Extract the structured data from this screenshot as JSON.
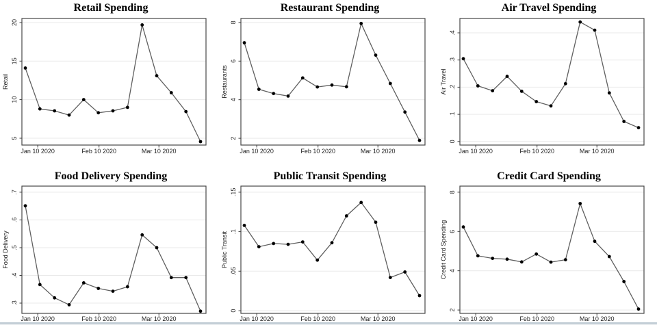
{
  "page": {
    "background": "#ffffff",
    "bottom_strip_color": "#c4cfd7"
  },
  "style": {
    "line_color": "#5f5f5f",
    "marker_color": "#000000",
    "grid_color": "#e9e9e9",
    "frame_color": "#454545",
    "tick_color": "#3f3f3f",
    "tick_label_color": "#1f1f1f",
    "title_color": "#000000"
  },
  "x_axis": {
    "tick_labels": [
      "Jan 10 2020",
      "Feb 10 2020",
      "Mar 10 2020"
    ],
    "tick_positions": [
      0.85,
      5.05,
      9.15
    ],
    "n_points": 13
  },
  "chart_data": [
    {
      "type": "line",
      "title": "Retail Spending",
      "ylabel": "Retail",
      "x_tick_labels": [
        "Jan 10 2020",
        "Feb 10 2020",
        "Mar 10 2020"
      ],
      "yticks": [
        {
          "value": 5,
          "label": "5"
        },
        {
          "value": 10,
          "label": "10"
        },
        {
          "value": 15,
          "label": "15"
        },
        {
          "value": 20,
          "label": "20"
        }
      ],
      "ylim": [
        4.11,
        20.53
      ],
      "values": [
        14.1,
        8.8,
        8.55,
        8.0,
        10.0,
        8.3,
        8.55,
        9.0,
        19.7,
        13.1,
        10.9,
        8.45,
        4.55
      ]
    },
    {
      "type": "line",
      "title": "Restaurant Spending",
      "ylabel": "Restaurants",
      "x_tick_labels": [
        "Jan 10 2020",
        "Feb 10 2020",
        "Mar 10 2020"
      ],
      "yticks": [
        {
          "value": 2,
          "label": "2"
        },
        {
          "value": 4,
          "label": "4"
        },
        {
          "value": 6,
          "label": "6"
        },
        {
          "value": 8,
          "label": "8"
        }
      ],
      "ylim": [
        1.65,
        8.21
      ],
      "values": [
        6.95,
        4.54,
        4.32,
        4.19,
        5.13,
        4.66,
        4.76,
        4.67,
        7.95,
        6.31,
        4.84,
        3.36,
        1.89
      ]
    },
    {
      "type": "line",
      "title": "Air Travel Spending",
      "ylabel": "Air Travel",
      "x_tick_labels": [
        "Jan 10 2020",
        "Feb 10 2020",
        "Mar 10 2020"
      ],
      "yticks": [
        {
          "value": 0.0,
          "label": "0"
        },
        {
          "value": 0.1,
          "label": ".1"
        },
        {
          "value": 0.2,
          "label": ".2"
        },
        {
          "value": 0.3,
          "label": ".3"
        },
        {
          "value": 0.4,
          "label": ".4"
        }
      ],
      "ylim": [
        -0.013,
        0.453
      ],
      "values": [
        0.305,
        0.205,
        0.187,
        0.24,
        0.185,
        0.147,
        0.131,
        0.213,
        0.44,
        0.41,
        0.179,
        0.074,
        0.051
      ]
    },
    {
      "type": "line",
      "title": "Food Delivery Spending",
      "ylabel": "Food Delivery",
      "x_tick_labels": [
        "Jan 10 2020",
        "Feb 10 2020",
        "Mar 10 2020"
      ],
      "yticks": [
        {
          "value": 0.3,
          "label": ".3"
        },
        {
          "value": 0.4,
          "label": ".4"
        },
        {
          "value": 0.5,
          "label": ".5"
        },
        {
          "value": 0.6,
          "label": ".6"
        },
        {
          "value": 0.7,
          "label": ".7"
        }
      ],
      "ylim": [
        0.263,
        0.722
      ],
      "values": [
        0.651,
        0.367,
        0.319,
        0.294,
        0.373,
        0.353,
        0.343,
        0.359,
        0.546,
        0.5,
        0.392,
        0.392,
        0.271
      ]
    },
    {
      "type": "line",
      "title": "Public Transit Spending",
      "ylabel": "Public Transit",
      "x_tick_labels": [
        "Jan 10 2020",
        "Feb 10 2020",
        "Mar 10 2020"
      ],
      "yticks": [
        {
          "value": 0.0,
          "label": "0"
        },
        {
          "value": 0.05,
          "label": ".05"
        },
        {
          "value": 0.1,
          "label": ".1"
        },
        {
          "value": 0.15,
          "label": ".15"
        }
      ],
      "ylim": [
        -0.0034,
        0.1577
      ],
      "values": [
        0.108,
        0.081,
        0.085,
        0.084,
        0.087,
        0.064,
        0.086,
        0.12,
        0.137,
        0.112,
        0.042,
        0.049,
        0.019
      ]
    },
    {
      "type": "line",
      "title": "Credit Card Spending",
      "ylabel": "Credit Card Spending",
      "x_tick_labels": [
        "Jan 10 2020",
        "Feb 10 2020",
        "Mar 10 2020"
      ],
      "yticks": [
        {
          "value": 2,
          "label": "2"
        },
        {
          "value": 4,
          "label": "4"
        },
        {
          "value": 6,
          "label": "6"
        },
        {
          "value": 8,
          "label": "8"
        }
      ],
      "ylim": [
        1.83,
        8.31
      ],
      "values": [
        6.23,
        4.76,
        4.63,
        4.59,
        4.45,
        4.85,
        4.44,
        4.56,
        7.42,
        5.5,
        4.72,
        3.45,
        2.05
      ]
    }
  ]
}
